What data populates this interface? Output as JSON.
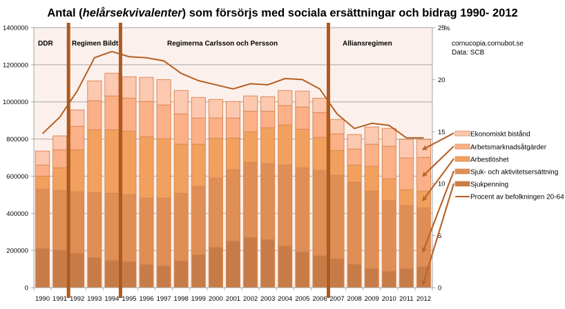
{
  "chart_data": {
    "type": "bar",
    "stacked": true,
    "title_parts": [
      "Antal (",
      "helårsekvivalenter",
      ") som försörjs med sociala ersättningar och bidrag 1990- 2012"
    ],
    "xlabel": "",
    "ylabel": "",
    "ylim": [
      0,
      1400000
    ],
    "y_ticks": [
      0,
      200000,
      400000,
      600000,
      800000,
      1000000,
      1200000,
      1400000
    ],
    "y_tick_labels": [
      "0",
      "200000",
      "400000",
      "600000",
      "800000",
      "1000000",
      "1200000",
      "1400000"
    ],
    "y2lim": [
      0,
      25
    ],
    "y2_ticks": [
      0,
      5,
      10,
      15,
      20,
      25
    ],
    "y2_tick_labels": [
      "0",
      "5",
      "10",
      "15",
      "20",
      "25"
    ],
    "y2_unit": "%",
    "grid": true,
    "categories": [
      "1990",
      "1991",
      "1992",
      "1993",
      "1994",
      "1995",
      "1996",
      "1997",
      "1998",
      "1999",
      "2000",
      "2001",
      "2002",
      "2003",
      "2004",
      "2005",
      "2006",
      "2007",
      "2008",
      "2009",
      "2010",
      "2011",
      "2012"
    ],
    "series": [
      {
        "name": "Sjukpenning",
        "color": "#C77C48",
        "values": [
          212000,
          204000,
          186000,
          163000,
          148000,
          141000,
          126000,
          119000,
          145000,
          178000,
          219000,
          252000,
          271000,
          260000,
          226000,
          193000,
          174000,
          156000,
          127000,
          104000,
          89000,
          104000,
          115000
        ]
      },
      {
        "name": "Sjuk- och aktivitetsersättning",
        "color": "#DF8E55",
        "values": [
          318000,
          319000,
          330000,
          349000,
          360000,
          360000,
          356000,
          363000,
          363000,
          367000,
          371000,
          383000,
          404000,
          408000,
          434000,
          452000,
          457000,
          449000,
          441000,
          416000,
          379000,
          338000,
          315000
        ]
      },
      {
        "name": "Arbestlöshet",
        "color": "#F2A05E",
        "values": [
          70000,
          122000,
          226000,
          338000,
          342000,
          341000,
          330000,
          320000,
          264000,
          227000,
          215000,
          170000,
          164000,
          193000,
          216000,
          208000,
          178000,
          133000,
          92000,
          133000,
          118000,
          85000,
          90000
        ]
      },
      {
        "name": "Arbetsmarknadsåtgärder",
        "color": "#FCB088",
        "values": [
          60000,
          97000,
          126000,
          156000,
          182000,
          178000,
          190000,
          181000,
          163000,
          141000,
          108000,
          108000,
          111000,
          89000,
          104000,
          119000,
          133000,
          90000,
          86000,
          119000,
          175000,
          171000,
          181000
        ]
      },
      {
        "name": "Ekonomiskt bistånd",
        "color": "#FDC8B0",
        "values": [
          75000,
          75000,
          89000,
          107000,
          122000,
          115000,
          130000,
          137000,
          126000,
          111000,
          100000,
          89000,
          82000,
          78000,
          81000,
          86000,
          78000,
          77000,
          78000,
          93000,
          96000,
          100000,
          97000
        ]
      }
    ],
    "line_series": {
      "name": "Procent av befolkningen 20-64 år",
      "axis": "right",
      "color": "#B45F22",
      "values": [
        14.8,
        16.4,
        18.9,
        22.1,
        22.7,
        22.2,
        22.1,
        21.8,
        20.6,
        19.9,
        19.5,
        19.1,
        19.6,
        19.5,
        20.1,
        20.0,
        19.1,
        16.7,
        15.3,
        15.8,
        15.6,
        14.4,
        14.4
      ]
    },
    "regime_dividers": [
      {
        "between": [
          "1991",
          "1992"
        ]
      },
      {
        "between": [
          "1994",
          "1995"
        ]
      },
      {
        "between": [
          "2006",
          "2007"
        ]
      }
    ],
    "regime_labels": [
      {
        "label": "DDR",
        "start_category": "1990"
      },
      {
        "label": "Regimen Bildt",
        "start_category": "1992"
      },
      {
        "label": "Regimerna Carlsson och Persson",
        "start_category": "1998"
      },
      {
        "label": "Alliansregimen",
        "start_category": "2008"
      }
    ],
    "legend": {
      "placement": "right",
      "entries": [
        "Ekonomiskt bistånd",
        "Arbetsmarknadsåtgärder",
        "Arbestlöshet",
        "Sjuk- och aktivitetsersättning",
        "Sjukpenning",
        "Procent av befolkningen 20-64 år"
      ]
    },
    "annotations": [
      "cornucopia.cornubot.se",
      "Data: SCB"
    ],
    "colors": {
      "plot_background": "#FCF0EC",
      "gridline": "#A6A6A6",
      "regime_line": "#AE5A1E",
      "arrow": "#B6652C"
    }
  }
}
